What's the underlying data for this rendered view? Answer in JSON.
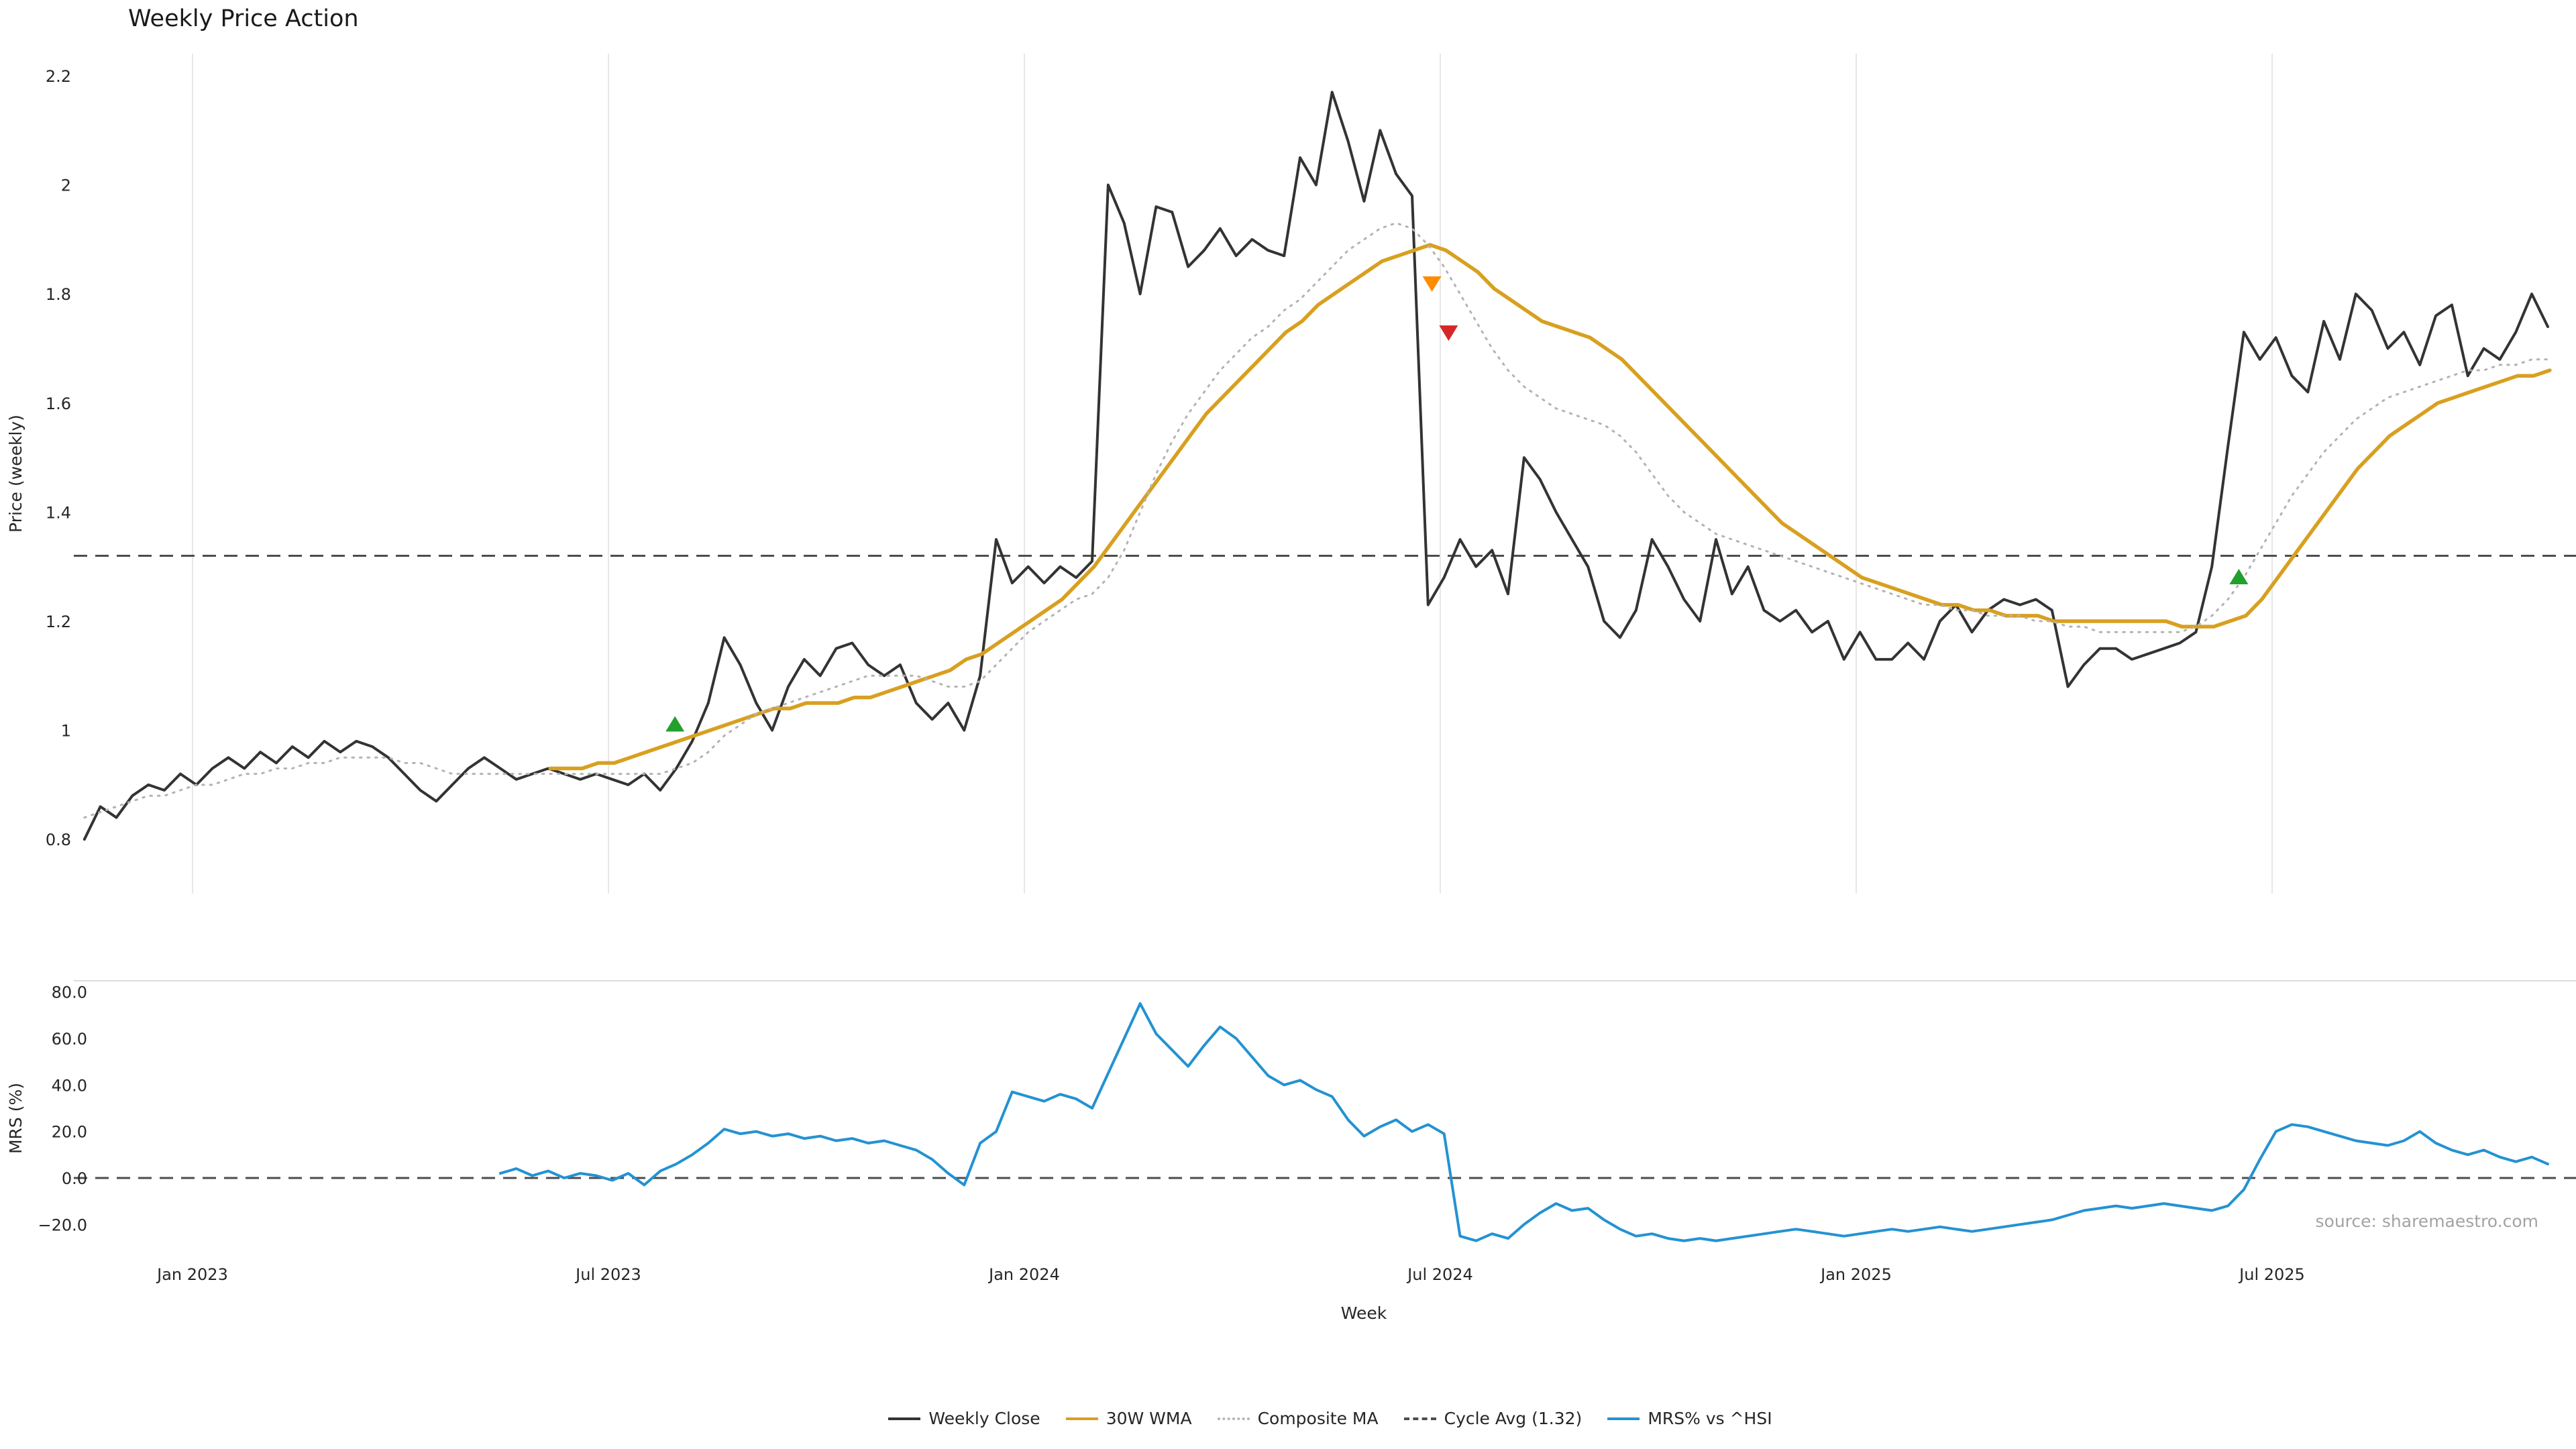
{
  "title": "Weekly Price Action",
  "source": "source: sharemaestro.com",
  "colors": {
    "weekly_close": "#333333",
    "wma_30w": "#d8a020",
    "composite_ma": "#b3b3b3",
    "cycle_avg": "#4d4d4d",
    "mrs_line": "#2392d2",
    "buy_marker": "#22a02c",
    "warn_marker": "#ff8c00",
    "sell_marker": "#d62728",
    "gridline": "#e7e7e7",
    "background": "#ffffff"
  },
  "chart_data": [
    {
      "type": "line",
      "panel": "price",
      "title": "Weekly Price Action",
      "xlabel": "",
      "ylabel": "Price (weekly)",
      "ylim": [
        0.75,
        2.25
      ],
      "xlim": [
        2022.87,
        2025.87
      ],
      "grid": "vertical",
      "legend_position": "bottom-center",
      "yticks": [
        {
          "v": 0.8,
          "label": "0.8"
        },
        {
          "v": 1.0,
          "label": "1"
        },
        {
          "v": 1.2,
          "label": "1.2"
        },
        {
          "v": 1.4,
          "label": "1.4"
        },
        {
          "v": 1.6,
          "label": "1.6"
        },
        {
          "v": 1.8,
          "label": "1.8"
        },
        {
          "v": 2.0,
          "label": "2"
        },
        {
          "v": 2.2,
          "label": "2.2"
        }
      ],
      "xticks": [
        {
          "x": 2023.0,
          "label": "Jan 2023"
        },
        {
          "x": 2023.5,
          "label": "Jul 2023"
        },
        {
          "x": 2024.0,
          "label": "Jan 2024"
        },
        {
          "x": 2024.5,
          "label": "Jul 2024"
        },
        {
          "x": 2025.0,
          "label": "Jan 2025"
        },
        {
          "x": 2025.5,
          "label": "Jul 2025"
        }
      ],
      "reference_lines": [
        {
          "name": "cycle-avg",
          "label": "Cycle Avg (1.32)",
          "value": 1.32,
          "style": "dashed",
          "color": "#4d4d4d"
        }
      ],
      "series": [
        {
          "name": "Weekly Close",
          "color": "#333333",
          "style": "solid",
          "width": 4,
          "x_start": 2022.87,
          "x_step": 0.01923,
          "values": [
            0.8,
            0.86,
            0.84,
            0.88,
            0.9,
            0.89,
            0.92,
            0.9,
            0.93,
            0.95,
            0.93,
            0.96,
            0.94,
            0.97,
            0.95,
            0.98,
            0.96,
            0.98,
            0.97,
            0.95,
            0.92,
            0.89,
            0.87,
            0.9,
            0.93,
            0.95,
            0.93,
            0.91,
            0.92,
            0.93,
            0.92,
            0.91,
            0.92,
            0.91,
            0.9,
            0.92,
            0.89,
            0.93,
            0.98,
            1.05,
            1.17,
            1.12,
            1.05,
            1.0,
            1.08,
            1.13,
            1.1,
            1.15,
            1.16,
            1.12,
            1.1,
            1.12,
            1.05,
            1.02,
            1.05,
            1.0,
            1.1,
            1.35,
            1.27,
            1.3,
            1.27,
            1.3,
            1.28,
            1.31,
            2.0,
            1.93,
            1.8,
            1.96,
            1.95,
            1.85,
            1.88,
            1.92,
            1.87,
            1.9,
            1.88,
            1.87,
            2.05,
            2.0,
            2.17,
            2.08,
            1.97,
            2.1,
            2.02,
            1.98,
            1.23,
            1.28,
            1.35,
            1.3,
            1.33,
            1.25,
            1.5,
            1.46,
            1.4,
            1.35,
            1.3,
            1.2,
            1.17,
            1.22,
            1.35,
            1.3,
            1.24,
            1.2,
            1.35,
            1.25,
            1.3,
            1.22,
            1.2,
            1.22,
            1.18,
            1.2,
            1.13,
            1.18,
            1.13,
            1.13,
            1.16,
            1.13,
            1.2,
            1.23,
            1.18,
            1.22,
            1.24,
            1.23,
            1.24,
            1.22,
            1.08,
            1.12,
            1.15,
            1.15,
            1.13,
            1.14,
            1.15,
            1.16,
            1.18,
            1.3,
            1.52,
            1.73,
            1.68,
            1.72,
            1.65,
            1.62,
            1.75,
            1.68,
            1.8,
            1.77,
            1.7,
            1.73,
            1.67,
            1.76,
            1.78,
            1.65,
            1.7,
            1.68,
            1.73,
            1.8,
            1.74
          ]
        },
        {
          "name": "30W WMA",
          "color": "#d8a020",
          "style": "solid",
          "width": 5.5,
          "x_start": 2023.43,
          "x_step": 0.01923,
          "values": [
            0.93,
            0.93,
            0.93,
            0.94,
            0.94,
            0.95,
            0.96,
            0.97,
            0.98,
            0.99,
            1.0,
            1.01,
            1.02,
            1.03,
            1.04,
            1.04,
            1.05,
            1.05,
            1.05,
            1.06,
            1.06,
            1.07,
            1.08,
            1.09,
            1.1,
            1.11,
            1.13,
            1.14,
            1.16,
            1.18,
            1.2,
            1.22,
            1.24,
            1.27,
            1.3,
            1.34,
            1.38,
            1.42,
            1.46,
            1.5,
            1.54,
            1.58,
            1.61,
            1.64,
            1.67,
            1.7,
            1.73,
            1.75,
            1.78,
            1.8,
            1.82,
            1.84,
            1.86,
            1.87,
            1.88,
            1.89,
            1.88,
            1.86,
            1.84,
            1.81,
            1.79,
            1.77,
            1.75,
            1.74,
            1.73,
            1.72,
            1.7,
            1.68,
            1.65,
            1.62,
            1.59,
            1.56,
            1.53,
            1.5,
            1.47,
            1.44,
            1.41,
            1.38,
            1.36,
            1.34,
            1.32,
            1.3,
            1.28,
            1.27,
            1.26,
            1.25,
            1.24,
            1.23,
            1.23,
            1.22,
            1.22,
            1.21,
            1.21,
            1.21,
            1.2,
            1.2,
            1.2,
            1.2,
            1.2,
            1.2,
            1.2,
            1.2,
            1.19,
            1.19,
            1.19,
            1.2,
            1.21,
            1.24,
            1.28,
            1.32,
            1.36,
            1.4,
            1.44,
            1.48,
            1.51,
            1.54,
            1.56,
            1.58,
            1.6,
            1.61,
            1.62,
            1.63,
            1.64,
            1.65,
            1.65,
            1.66
          ]
        },
        {
          "name": "Composite MA",
          "color": "#b3b3b3",
          "style": "dotted",
          "width": 3,
          "x_start": 2022.87,
          "x_step": 0.01923,
          "values": [
            0.84,
            0.85,
            0.86,
            0.87,
            0.88,
            0.88,
            0.89,
            0.9,
            0.9,
            0.91,
            0.92,
            0.92,
            0.93,
            0.93,
            0.94,
            0.94,
            0.95,
            0.95,
            0.95,
            0.95,
            0.94,
            0.94,
            0.93,
            0.92,
            0.92,
            0.92,
            0.92,
            0.92,
            0.92,
            0.92,
            0.92,
            0.92,
            0.92,
            0.92,
            0.92,
            0.92,
            0.92,
            0.93,
            0.94,
            0.96,
            0.99,
            1.01,
            1.03,
            1.04,
            1.05,
            1.06,
            1.07,
            1.08,
            1.09,
            1.1,
            1.1,
            1.1,
            1.1,
            1.09,
            1.08,
            1.08,
            1.09,
            1.12,
            1.15,
            1.18,
            1.2,
            1.22,
            1.24,
            1.25,
            1.28,
            1.33,
            1.4,
            1.47,
            1.53,
            1.58,
            1.62,
            1.66,
            1.69,
            1.72,
            1.74,
            1.77,
            1.79,
            1.82,
            1.85,
            1.88,
            1.9,
            1.92,
            1.93,
            1.92,
            1.89,
            1.85,
            1.8,
            1.75,
            1.7,
            1.66,
            1.63,
            1.61,
            1.59,
            1.58,
            1.57,
            1.56,
            1.54,
            1.51,
            1.47,
            1.43,
            1.4,
            1.38,
            1.36,
            1.35,
            1.34,
            1.33,
            1.32,
            1.31,
            1.3,
            1.29,
            1.28,
            1.27,
            1.26,
            1.25,
            1.24,
            1.23,
            1.23,
            1.22,
            1.22,
            1.21,
            1.21,
            1.21,
            1.2,
            1.2,
            1.19,
            1.19,
            1.18,
            1.18,
            1.18,
            1.18,
            1.18,
            1.18,
            1.19,
            1.21,
            1.24,
            1.28,
            1.33,
            1.38,
            1.43,
            1.47,
            1.51,
            1.54,
            1.57,
            1.59,
            1.61,
            1.62,
            1.63,
            1.64,
            1.65,
            1.66,
            1.66,
            1.67,
            1.67,
            1.68,
            1.68
          ]
        }
      ],
      "markers": [
        {
          "shape": "triangle-up",
          "color": "#22a02c",
          "x": 2023.58,
          "value": 1.01
        },
        {
          "shape": "triangle-down",
          "color": "#ff8c00",
          "x": 2024.49,
          "value": 1.82
        },
        {
          "shape": "triangle-down",
          "color": "#d62728",
          "x": 2024.51,
          "value": 1.73
        },
        {
          "shape": "triangle-up",
          "color": "#22a02c",
          "x": 2025.46,
          "value": 1.28
        }
      ]
    },
    {
      "type": "line",
      "panel": "mrs",
      "xlabel": "Week",
      "ylabel": "MRS (%)",
      "ylim": [
        -32,
        85
      ],
      "xlim": [
        2022.87,
        2025.87
      ],
      "grid": "off",
      "top_spine": true,
      "yticks": [
        {
          "v": -20,
          "label": "−20.0"
        },
        {
          "v": 0,
          "label": "0.0"
        },
        {
          "v": 20,
          "label": "20.0"
        },
        {
          "v": 40,
          "label": "40.0"
        },
        {
          "v": 60,
          "label": "60.0"
        },
        {
          "v": 80,
          "label": "80.0"
        }
      ],
      "reference_lines": [
        {
          "name": "zero",
          "label": "0",
          "value": 0,
          "style": "dashed",
          "color": "#4d4d4d"
        }
      ],
      "series": [
        {
          "name": "MRS% vs ^HSI",
          "color": "#2392d2",
          "style": "solid",
          "width": 4,
          "x_start": 2023.37,
          "x_step": 0.01923,
          "values": [
            2,
            4,
            1,
            3,
            0,
            2,
            1,
            -1,
            2,
            -3,
            3,
            6,
            10,
            15,
            21,
            19,
            20,
            18,
            19,
            17,
            18,
            16,
            17,
            15,
            16,
            14,
            12,
            8,
            2,
            -3,
            15,
            20,
            37,
            35,
            33,
            36,
            34,
            30,
            45,
            60,
            75,
            62,
            55,
            48,
            57,
            65,
            60,
            52,
            44,
            40,
            42,
            38,
            35,
            25,
            18,
            22,
            25,
            20,
            23,
            19,
            -25,
            -27,
            -24,
            -26,
            -20,
            -15,
            -11,
            -14,
            -13,
            -18,
            -22,
            -25,
            -24,
            -26,
            -27,
            -26,
            -27,
            -26,
            -25,
            -24,
            -23,
            -22,
            -23,
            -24,
            -25,
            -24,
            -23,
            -22,
            -23,
            -22,
            -21,
            -22,
            -23,
            -22,
            -21,
            -20,
            -19,
            -18,
            -16,
            -14,
            -13,
            -12,
            -13,
            -12,
            -11,
            -12,
            -13,
            -14,
            -12,
            -5,
            8,
            20,
            23,
            22,
            20,
            18,
            16,
            15,
            14,
            16,
            20,
            15,
            12,
            10,
            12,
            9,
            7,
            9,
            6
          ]
        }
      ]
    }
  ],
  "legend": {
    "items": [
      {
        "label": "Weekly Close",
        "color": "#333333",
        "style": "solid"
      },
      {
        "label": "30W WMA",
        "color": "#d8a020",
        "style": "solid"
      },
      {
        "label": "Composite MA",
        "color": "#b3b3b3",
        "style": "dotted"
      },
      {
        "label": "Cycle Avg (1.32)",
        "color": "#4d4d4d",
        "style": "dashed"
      },
      {
        "label": "MRS% vs ^HSI",
        "color": "#2392d2",
        "style": "solid"
      }
    ]
  }
}
